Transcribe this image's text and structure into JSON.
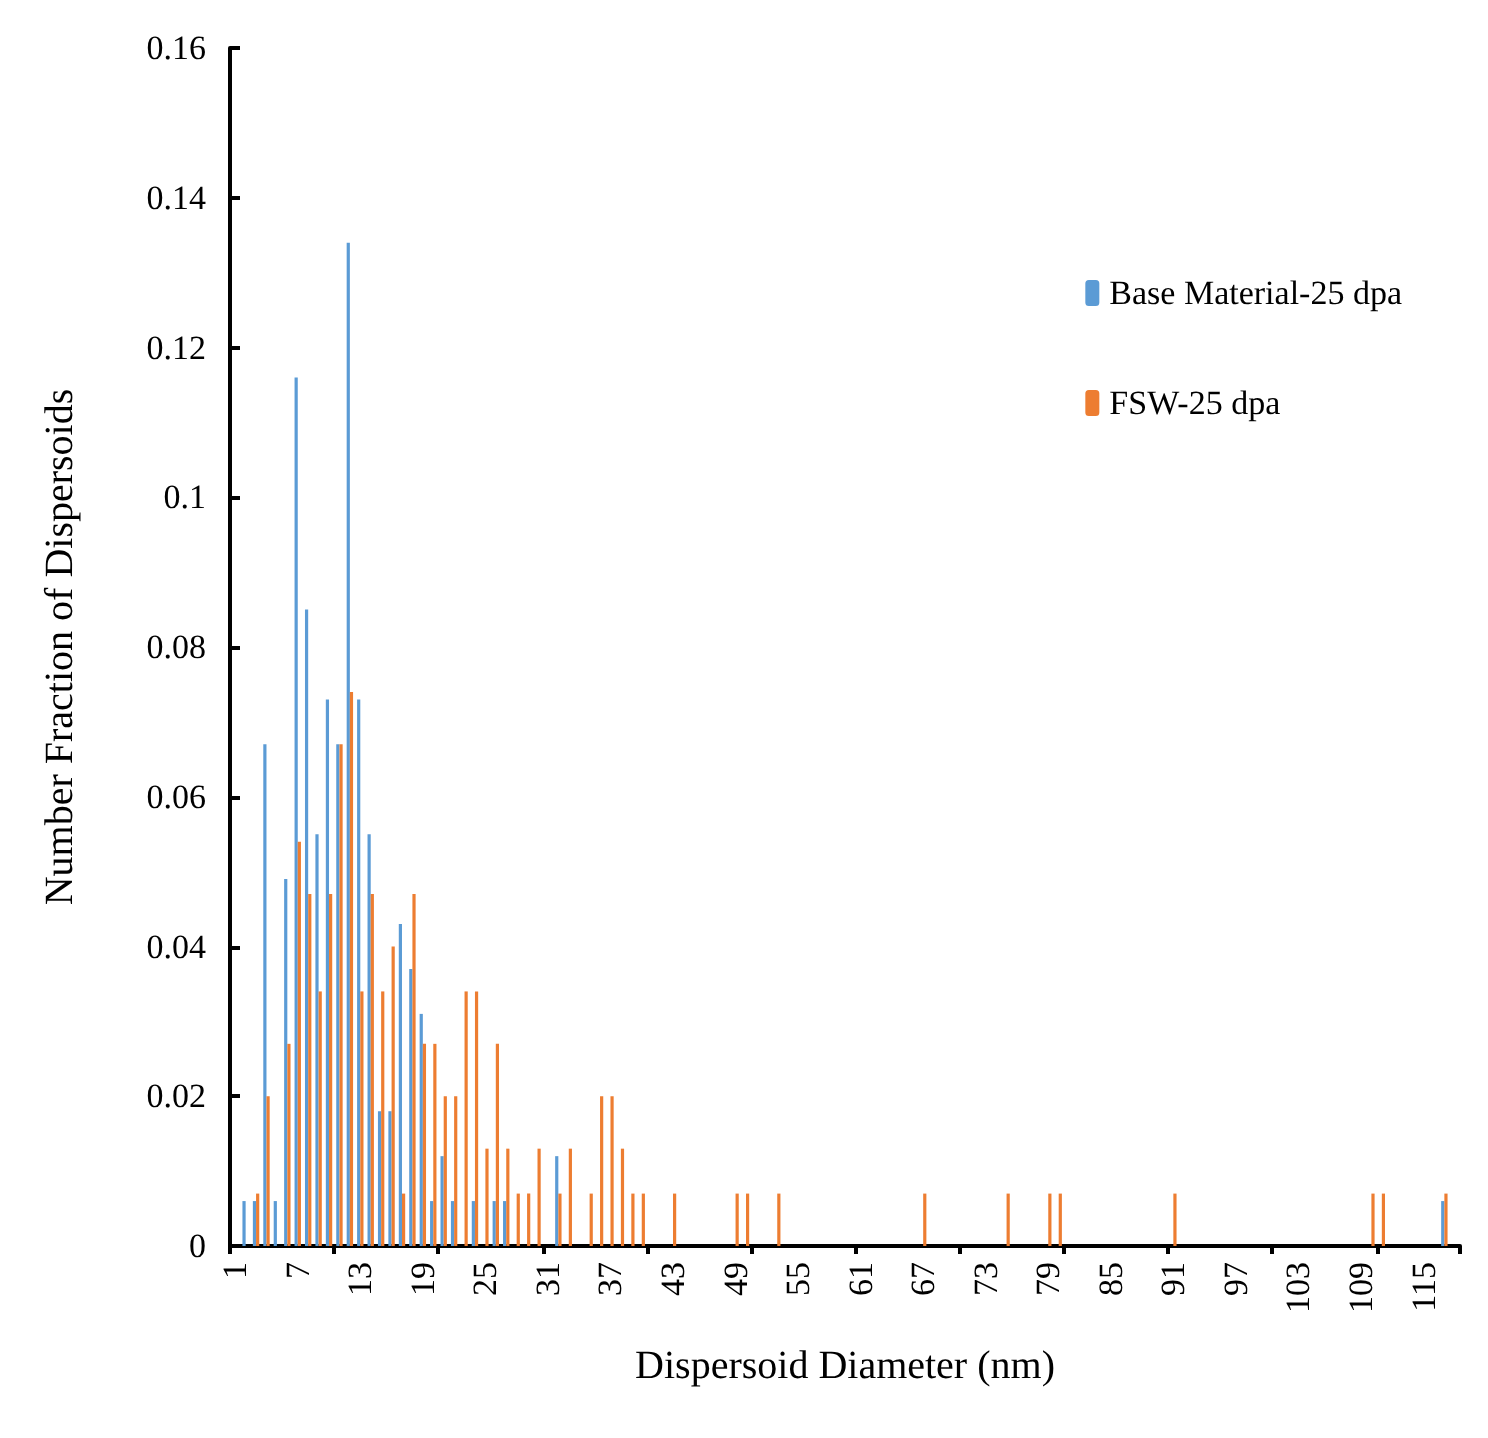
{
  "chart_data": {
    "type": "bar",
    "xlabel": "Dispersoid Diameter (nm)",
    "ylabel": "Number Fraction of Dispersoids",
    "categories": [
      "1",
      null,
      null,
      null,
      null,
      null,
      "7",
      null,
      null,
      null,
      null,
      null,
      "13",
      null,
      null,
      null,
      null,
      null,
      "19",
      null,
      null,
      null,
      null,
      null,
      "25",
      null,
      null,
      null,
      null,
      null,
      "31",
      null,
      null,
      null,
      null,
      null,
      "37",
      null,
      null,
      null,
      null,
      null,
      "43",
      null,
      null,
      null,
      null,
      null,
      "49",
      null,
      null,
      null,
      null,
      null,
      "55",
      null,
      null,
      null,
      null,
      null,
      "61",
      null,
      null,
      null,
      null,
      null,
      "67",
      null,
      null,
      null,
      null,
      null,
      "73",
      null,
      null,
      null,
      null,
      null,
      "79",
      null,
      null,
      null,
      null,
      null,
      "85",
      null,
      null,
      null,
      null,
      null,
      "91",
      null,
      null,
      null,
      null,
      null,
      "97",
      null,
      null,
      null,
      null,
      null,
      "103",
      null,
      null,
      null,
      null,
      null,
      "109",
      null,
      null,
      null,
      null,
      null,
      "115",
      null,
      null,
      null
    ],
    "series": [
      {
        "name": "Base Material-25 dpa",
        "color": "#5b9bd5",
        "values": [
          0,
          0.006,
          0.006,
          0.067,
          0.006,
          0.049,
          0.116,
          0.085,
          0.055,
          0.073,
          0.067,
          0.134,
          0.073,
          0.055,
          0.018,
          0.018,
          0.043,
          0.037,
          0.031,
          0.006,
          0.012,
          0.006,
          0,
          0.006,
          0,
          0.006,
          0.006,
          0,
          0,
          0,
          0,
          0.012,
          0,
          0,
          0,
          0,
          0,
          0,
          0,
          0,
          0,
          0,
          0,
          0,
          0,
          0,
          0,
          0,
          0,
          0,
          0,
          0,
          0,
          0,
          0,
          0,
          0,
          0,
          0,
          0,
          0,
          0,
          0,
          0,
          0,
          0,
          0,
          0,
          0,
          0,
          0,
          0,
          0,
          0,
          0,
          0,
          0,
          0,
          0,
          0,
          0,
          0,
          0,
          0,
          0,
          0,
          0,
          0,
          0,
          0,
          0,
          0,
          0,
          0,
          0,
          0,
          0,
          0,
          0,
          0,
          0,
          0,
          0,
          0,
          0,
          0,
          0,
          0,
          0,
          0,
          0,
          0,
          0,
          0,
          0,
          0,
          0.006,
          0
        ]
      },
      {
        "name": "FSW-25 dpa",
        "color": "#ed7d31",
        "values": [
          0,
          0,
          0.007,
          0.02,
          0,
          0.027,
          0.054,
          0.047,
          0.034,
          0.047,
          0.067,
          0.074,
          0.034,
          0.047,
          0.034,
          0.04,
          0.007,
          0.047,
          0.027,
          0.027,
          0.02,
          0.02,
          0.034,
          0.034,
          0.013,
          0.027,
          0.013,
          0.007,
          0.007,
          0.013,
          0,
          0.007,
          0.013,
          0,
          0.007,
          0.02,
          0.02,
          0.013,
          0.007,
          0.007,
          0,
          0,
          0.007,
          0,
          0,
          0,
          0,
          0,
          0.007,
          0.007,
          0,
          0,
          0.007,
          0,
          0,
          0,
          0,
          0,
          0,
          0,
          0,
          0,
          0,
          0,
          0,
          0,
          0.007,
          0,
          0,
          0,
          0,
          0,
          0,
          0,
          0.007,
          0,
          0,
          0,
          0.007,
          0.007,
          0,
          0,
          0,
          0,
          0,
          0,
          0,
          0,
          0,
          0,
          0.007,
          0,
          0,
          0,
          0,
          0,
          0,
          0,
          0,
          0,
          0,
          0,
          0,
          0,
          0,
          0,
          0,
          0,
          0,
          0.007,
          0.007,
          0,
          0,
          0,
          0,
          0,
          0.007,
          0
        ]
      }
    ],
    "ylim": [
      0,
      0.16
    ],
    "yticks": [
      0,
      0.02,
      0.04,
      0.06,
      0.08,
      0.1,
      0.12,
      0.14,
      0.16
    ],
    "grid": false,
    "legend": "top right"
  }
}
